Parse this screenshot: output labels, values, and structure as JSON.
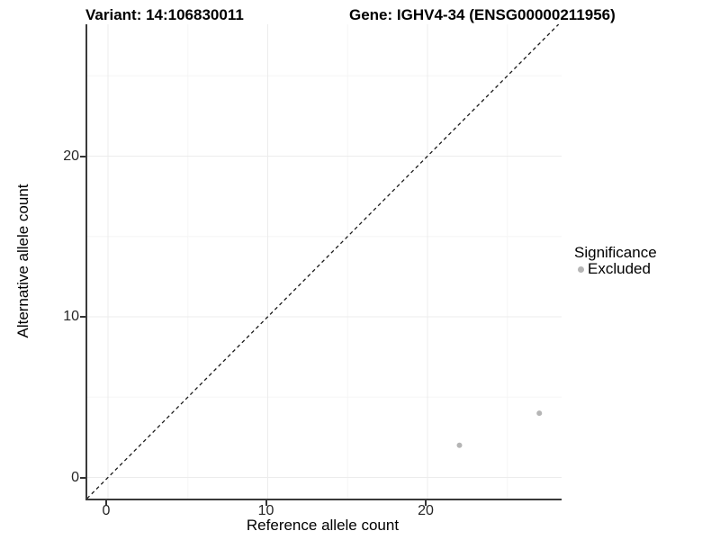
{
  "chart_data": {
    "type": "scatter",
    "title_left": "Variant: 14:106830011",
    "title_right": "Gene: IGHV4-34 (ENSG00000211956)",
    "xlabel": "Reference allele count",
    "ylabel": "Alternative allele count",
    "xlim": [
      -1.3,
      28.4
    ],
    "ylim": [
      -1.3,
      28.2
    ],
    "x_ticks": [
      0,
      10,
      20
    ],
    "y_ticks": [
      0,
      10,
      20
    ],
    "x_minor_gridlines": [
      5,
      15,
      25
    ],
    "y_minor_gridlines": [
      5,
      15,
      25
    ],
    "grid": true,
    "identity_line": {
      "equation": "y = x",
      "style": "dashed",
      "color": "#1a1a1a"
    },
    "series": [
      {
        "name": "Excluded",
        "color": "#b5b5b5",
        "points": [
          {
            "x": 22,
            "y": 2
          },
          {
            "x": 27,
            "y": 4
          }
        ]
      }
    ],
    "legend": {
      "title": "Significance",
      "position": "right",
      "items": [
        {
          "label": "Excluded",
          "color": "#b5b5b5"
        }
      ]
    },
    "colors": {
      "major_gridline": "#ececec",
      "minor_gridline": "#f5f5f5",
      "axis_line": "#3a3a3a"
    }
  }
}
